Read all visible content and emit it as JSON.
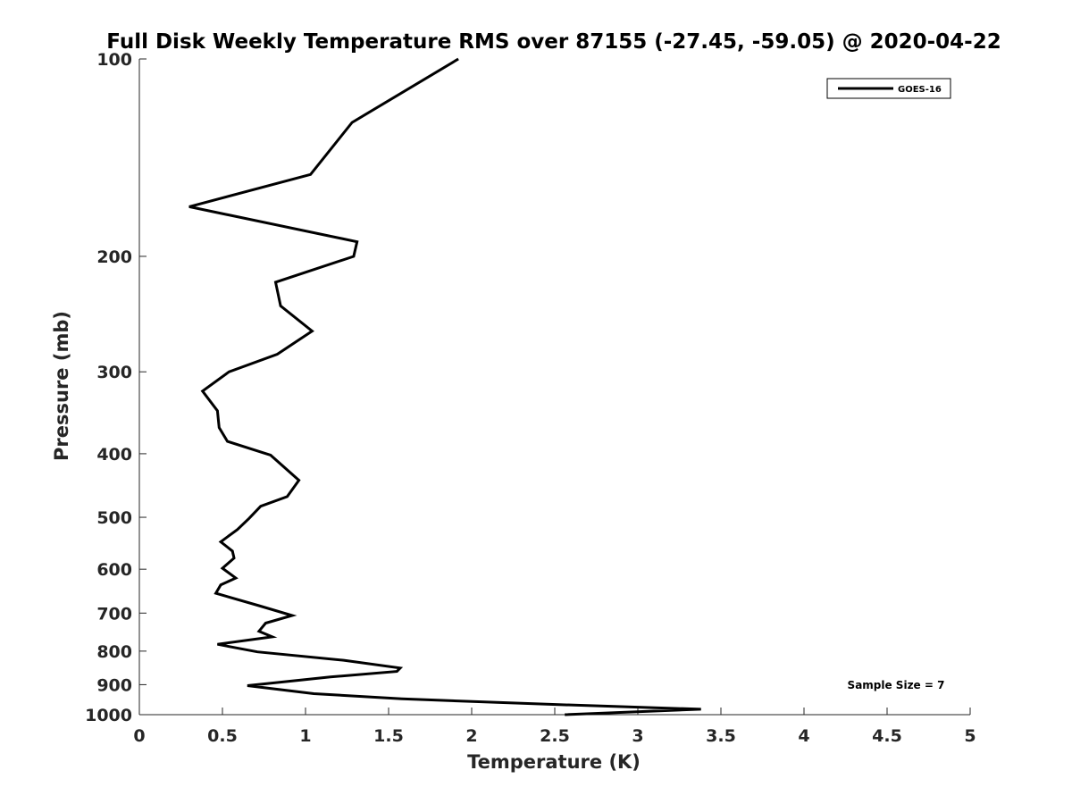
{
  "chart_data": {
    "type": "line",
    "title": "Full Disk Weekly Temperature RMS over 87155 (-27.45, -59.05) @ 2020-04-22",
    "xlabel": "Temperature (K)",
    "ylabel": "Pressure (mb)",
    "xlim": [
      0,
      5
    ],
    "ylim": [
      100,
      1000
    ],
    "yscale": "log",
    "y_reversed": true,
    "grid": false,
    "legend_position": "top-right",
    "x_ticks": [
      "0",
      "0.5",
      "1",
      "1.5",
      "2",
      "2.5",
      "3",
      "3.5",
      "4",
      "4.5",
      "5"
    ],
    "x_tick_values": [
      0,
      0.5,
      1,
      1.5,
      2,
      2.5,
      3,
      3.5,
      4,
      4.5,
      5
    ],
    "y_ticks": [
      "100",
      "200",
      "300",
      "400",
      "500",
      "600",
      "700",
      "800",
      "900",
      "1000"
    ],
    "y_tick_values": [
      100,
      200,
      300,
      400,
      500,
      600,
      700,
      800,
      900,
      1000
    ],
    "series": [
      {
        "name": "GOES-16",
        "color": "#000000",
        "points": [
          [
            1.92,
            100
          ],
          [
            1.28,
            125
          ],
          [
            1.03,
            150
          ],
          [
            0.3,
            168
          ],
          [
            1.31,
            190
          ],
          [
            1.29,
            200
          ],
          [
            0.82,
            219
          ],
          [
            0.85,
            238
          ],
          [
            1.04,
            260
          ],
          [
            0.83,
            282
          ],
          [
            0.54,
            300
          ],
          [
            0.38,
            321
          ],
          [
            0.47,
            344
          ],
          [
            0.48,
            365
          ],
          [
            0.53,
            383
          ],
          [
            0.79,
            402
          ],
          [
            0.96,
            439
          ],
          [
            0.89,
            465
          ],
          [
            0.73,
            481
          ],
          [
            0.66,
            502
          ],
          [
            0.59,
            522
          ],
          [
            0.49,
            545
          ],
          [
            0.56,
            563
          ],
          [
            0.57,
            577
          ],
          [
            0.5,
            598
          ],
          [
            0.58,
            619
          ],
          [
            0.49,
            634
          ],
          [
            0.46,
            653
          ],
          [
            0.72,
            682
          ],
          [
            0.92,
            706
          ],
          [
            0.76,
            725
          ],
          [
            0.72,
            746
          ],
          [
            0.8,
            761
          ],
          [
            0.47,
            781
          ],
          [
            0.71,
            802
          ],
          [
            1.23,
            826
          ],
          [
            1.57,
            849
          ],
          [
            1.55,
            859
          ],
          [
            1.15,
            876
          ],
          [
            0.65,
            903
          ],
          [
            1.05,
            929
          ],
          [
            1.58,
            946
          ],
          [
            2.45,
            964
          ],
          [
            3.38,
            981
          ],
          [
            2.56,
            1000
          ]
        ]
      }
    ],
    "annotation": "Sample Size = 7"
  }
}
